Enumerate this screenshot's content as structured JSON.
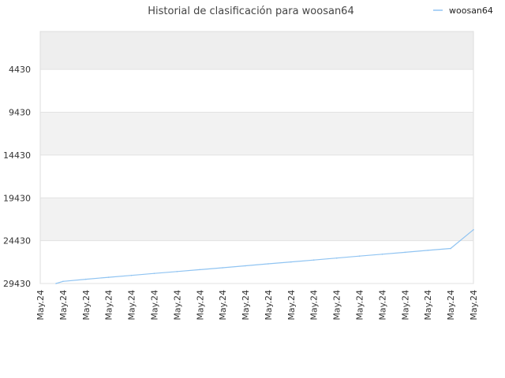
{
  "chart_data": {
    "type": "line",
    "title": "Historial de clasificación para woosan64",
    "xlabel": "",
    "ylabel": "",
    "y_axis_reversed": true,
    "ylim": [
      29430,
      0
    ],
    "y_ticks": [
      "4430",
      "9430",
      "14430",
      "19430",
      "24430",
      "29430"
    ],
    "y_tick_values": [
      4430,
      9430,
      14430,
      19430,
      24430,
      29430
    ],
    "categories": [
      "May.24",
      "May.24",
      "May.24",
      "May.24",
      "May.24",
      "May.24",
      "May.24",
      "May.24",
      "May.24",
      "May.24",
      "May.24",
      "May.24",
      "May.24",
      "May.24",
      "May.24",
      "May.24",
      "May.24",
      "May.24",
      "May.24",
      "May.24"
    ],
    "legend_position": "top-right",
    "grid": true,
    "series": [
      {
        "name": "woosan64",
        "color": "#90c4f2",
        "values": [
          29430,
          29180,
          28930,
          28700,
          28480,
          28250,
          28030,
          27810,
          27590,
          27360,
          27130,
          26910,
          26690,
          26460,
          26230,
          26010,
          25790,
          25560,
          25340,
          23150
        ]
      }
    ],
    "band_colors": [
      "#eeeeee",
      "#ffffff",
      "#f2f2f2",
      "#ffffff",
      "#f2f2f2",
      "#ffffff"
    ]
  }
}
